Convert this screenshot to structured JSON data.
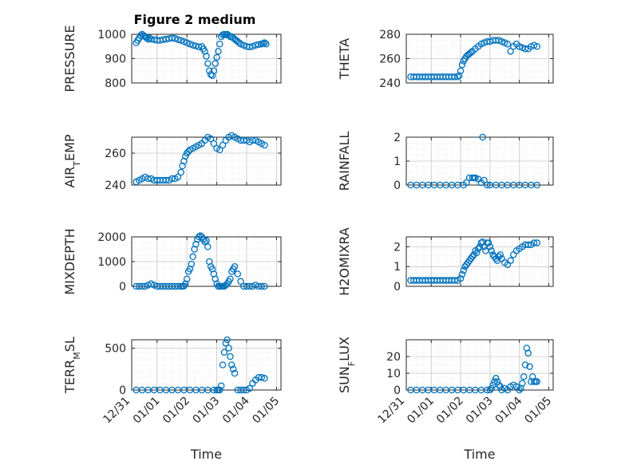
{
  "figure": {
    "title": "Figure 2 medium"
  },
  "colors": {
    "marker": "#0072BD",
    "axis": "#262626",
    "grid": "#c8c8c8"
  },
  "x_axis": {
    "xlabel": "Time",
    "xlim": [
      "12/31",
      "01/05"
    ],
    "ticks": [
      "12/31",
      "01/01",
      "01/02",
      "01/03",
      "01/04",
      "01/05"
    ]
  },
  "chart_data": [
    {
      "type": "scatter",
      "ylabel": "PRESSURE",
      "ylim": [
        800,
        1000
      ],
      "yticks": [
        800,
        900,
        1000
      ],
      "x_days": [
        0.3,
        0.35,
        0.4,
        0.45,
        0.5,
        0.55,
        0.6,
        0.65,
        0.7,
        0.75,
        0.8,
        0.9,
        1.0,
        1.1,
        1.2,
        1.3,
        1.4,
        1.5,
        1.6,
        1.7,
        1.8,
        1.9,
        2.0,
        2.1,
        2.2,
        2.3,
        2.4,
        2.5,
        2.55,
        2.6,
        2.65,
        2.7,
        2.75,
        2.8,
        2.85,
        2.9,
        2.95,
        3.0,
        3.05,
        3.1,
        3.15,
        3.2,
        3.25,
        3.3,
        3.35,
        3.4,
        3.45,
        3.5,
        3.55,
        3.6,
        3.65,
        3.7,
        3.75,
        3.8,
        3.9,
        4.0,
        4.1,
        4.2,
        4.3,
        4.4,
        4.5,
        4.55,
        4.6,
        4.65
      ],
      "y": [
        965,
        975,
        985,
        995,
        1000,
        995,
        990,
        985,
        980,
        985,
        980,
        978,
        975,
        975,
        978,
        980,
        982,
        985,
        983,
        978,
        975,
        970,
        965,
        960,
        955,
        952,
        948,
        950,
        940,
        930,
        910,
        880,
        850,
        835,
        830,
        850,
        880,
        905,
        930,
        960,
        990,
        998,
        1000,
        998,
        1000,
        995,
        990,
        990,
        985,
        980,
        975,
        970,
        965,
        960,
        955,
        950,
        948,
        950,
        955,
        958,
        960,
        962,
        965,
        960
      ]
    },
    {
      "type": "scatter",
      "ylabel": "THETA",
      "ylim": [
        240,
        280
      ],
      "yticks": [
        240,
        260,
        280
      ],
      "x_days": [
        0.3,
        0.4,
        0.5,
        0.6,
        0.7,
        0.8,
        0.9,
        1.0,
        1.1,
        1.2,
        1.3,
        1.4,
        1.5,
        1.6,
        1.7,
        1.8,
        1.9,
        1.95,
        2.0,
        2.05,
        2.1,
        2.15,
        2.2,
        2.25,
        2.3,
        2.35,
        2.4,
        2.5,
        2.6,
        2.7,
        2.8,
        2.9,
        3.0,
        3.1,
        3.2,
        3.3,
        3.4,
        3.5,
        3.6,
        3.7,
        3.8,
        3.9,
        4.0,
        4.1,
        4.2,
        4.3,
        4.4,
        4.5,
        4.6
      ],
      "y": [
        245,
        245,
        245,
        245,
        245,
        245,
        245,
        245,
        245,
        245,
        245,
        245,
        245,
        245,
        245,
        245,
        245,
        246,
        250,
        255,
        258,
        260,
        262,
        263,
        264,
        265,
        266,
        268,
        270,
        272,
        273,
        274,
        274,
        275,
        275,
        275,
        274,
        273,
        272,
        266,
        270,
        272,
        270,
        269,
        268,
        268,
        270,
        271,
        270
      ]
    },
    {
      "type": "scatter",
      "ylabel": "AIR_TEMP",
      "ylim": [
        240,
        270
      ],
      "yticks": [
        240,
        260
      ],
      "x_days": [
        0.3,
        0.4,
        0.5,
        0.6,
        0.7,
        0.8,
        0.9,
        1.0,
        1.1,
        1.2,
        1.3,
        1.4,
        1.5,
        1.6,
        1.7,
        1.8,
        1.85,
        1.9,
        1.95,
        2.0,
        2.05,
        2.1,
        2.2,
        2.3,
        2.4,
        2.5,
        2.6,
        2.7,
        2.8,
        2.9,
        3.0,
        3.1,
        3.2,
        3.3,
        3.4,
        3.5,
        3.6,
        3.7,
        3.8,
        3.9,
        4.0,
        4.1,
        4.2,
        4.3,
        4.4,
        4.5,
        4.6
      ],
      "y": [
        242,
        243,
        244,
        245,
        244,
        244,
        243,
        243,
        243,
        243,
        243,
        243,
        244,
        244,
        245,
        248,
        252,
        255,
        258,
        260,
        261,
        262,
        263,
        264,
        265,
        266,
        268,
        270,
        269,
        266,
        263,
        262,
        265,
        268,
        270,
        271,
        270,
        269,
        268,
        268,
        268,
        267,
        268,
        268,
        267,
        266,
        265
      ]
    },
    {
      "type": "scatter",
      "ylabel": "RAINFALL",
      "ylim": [
        0,
        2
      ],
      "yticks": [
        0,
        1,
        2
      ],
      "x_days": [
        0.3,
        0.5,
        0.7,
        0.9,
        1.1,
        1.3,
        1.5,
        1.7,
        1.9,
        2.1,
        2.2,
        2.3,
        2.4,
        2.5,
        2.6,
        2.7,
        2.8,
        2.9,
        3.0,
        3.2,
        3.4,
        3.6,
        3.8,
        4.0,
        4.2,
        4.4,
        4.6,
        2.45,
        2.75
      ],
      "y": [
        0,
        0,
        0,
        0,
        0,
        0,
        0,
        0,
        0,
        0,
        0.1,
        0.3,
        0.3,
        0.3,
        0.25,
        0.1,
        0.2,
        0,
        0,
        0,
        0,
        0,
        0,
        0,
        0,
        0,
        0,
        0.3,
        2.0
      ]
    },
    {
      "type": "scatter",
      "ylabel": "MIXDEPTH",
      "ylim": [
        0,
        2000
      ],
      "yticks": [
        0,
        1000,
        2000
      ],
      "x_days": [
        0.3,
        0.4,
        0.5,
        0.6,
        0.7,
        0.8,
        0.9,
        1.0,
        1.1,
        1.2,
        1.3,
        1.4,
        1.5,
        1.6,
        1.7,
        1.8,
        1.85,
        1.9,
        1.95,
        2.0,
        2.05,
        2.1,
        2.15,
        2.2,
        2.25,
        2.3,
        2.35,
        2.4,
        2.45,
        2.5,
        2.55,
        2.6,
        2.65,
        2.7,
        2.75,
        2.8,
        2.85,
        2.9,
        2.95,
        3.0,
        3.05,
        3.1,
        3.15,
        3.2,
        3.25,
        3.3,
        3.35,
        3.4,
        3.45,
        3.5,
        3.55,
        3.6,
        3.7,
        3.8,
        3.9,
        4.0,
        4.1,
        4.2,
        4.3,
        4.4,
        4.5,
        4.6
      ],
      "y": [
        0,
        0,
        0,
        0,
        50,
        100,
        50,
        0,
        0,
        0,
        0,
        0,
        0,
        0,
        0,
        0,
        0,
        10,
        100,
        300,
        600,
        700,
        900,
        1200,
        1500,
        1700,
        1900,
        2000,
        2050,
        2000,
        1900,
        1800,
        1850,
        1600,
        1000,
        800,
        700,
        500,
        300,
        100,
        0,
        0,
        0,
        0,
        0,
        50,
        100,
        200,
        300,
        600,
        700,
        800,
        500,
        200,
        0,
        0,
        0,
        0,
        50,
        0,
        0,
        0
      ]
    },
    {
      "type": "scatter",
      "ylabel": "H2OMIXRA",
      "ylim": [
        0,
        2.5
      ],
      "yticks": [
        0,
        1,
        2
      ],
      "x_days": [
        0.3,
        0.4,
        0.5,
        0.6,
        0.7,
        0.8,
        0.9,
        1.0,
        1.1,
        1.2,
        1.3,
        1.4,
        1.5,
        1.6,
        1.7,
        1.8,
        1.9,
        2.0,
        2.05,
        2.1,
        2.15,
        2.2,
        2.25,
        2.3,
        2.35,
        2.4,
        2.45,
        2.5,
        2.55,
        2.6,
        2.65,
        2.7,
        2.75,
        2.8,
        2.85,
        2.9,
        2.95,
        3.0,
        3.05,
        3.1,
        3.15,
        3.2,
        3.25,
        3.3,
        3.35,
        3.4,
        3.5,
        3.6,
        3.7,
        3.8,
        3.9,
        4.0,
        4.1,
        4.2,
        4.3,
        4.4,
        4.5,
        4.6
      ],
      "y": [
        0.3,
        0.3,
        0.3,
        0.3,
        0.3,
        0.3,
        0.3,
        0.3,
        0.3,
        0.3,
        0.3,
        0.3,
        0.3,
        0.3,
        0.3,
        0.3,
        0.3,
        0.4,
        0.6,
        0.8,
        1.0,
        1.1,
        1.2,
        1.3,
        1.4,
        1.5,
        1.6,
        1.8,
        1.7,
        1.9,
        2.0,
        2.2,
        2.25,
        2.0,
        1.8,
        2.2,
        2.2,
        2.0,
        1.8,
        1.6,
        1.5,
        1.4,
        1.3,
        1.5,
        1.6,
        1.4,
        1.2,
        1.1,
        1.3,
        1.6,
        1.8,
        1.9,
        2.0,
        2.1,
        2.1,
        2.1,
        2.2,
        2.2
      ]
    },
    {
      "type": "scatter",
      "ylabel": "TERR_MSL",
      "ylim": [
        0,
        600
      ],
      "yticks": [
        0,
        500
      ],
      "x_days": [
        0.3,
        0.5,
        0.7,
        0.9,
        1.1,
        1.3,
        1.5,
        1.7,
        1.9,
        2.1,
        2.3,
        2.5,
        2.7,
        2.9,
        3.0,
        3.05,
        3.1,
        3.15,
        3.2,
        3.25,
        3.3,
        3.35,
        3.4,
        3.45,
        3.5,
        3.55,
        3.6,
        3.7,
        3.8,
        3.9,
        4.0,
        4.1,
        4.2,
        4.3,
        4.4,
        4.5,
        4.6
      ],
      "y": [
        0,
        0,
        0,
        0,
        0,
        0,
        0,
        0,
        0,
        0,
        0,
        0,
        0,
        0,
        0,
        0,
        0,
        50,
        300,
        450,
        560,
        600,
        500,
        400,
        300,
        250,
        200,
        0,
        0,
        0,
        0,
        20,
        80,
        120,
        150,
        150,
        140
      ]
    },
    {
      "type": "scatter",
      "ylabel": "SUN_FLUX",
      "ylim": [
        0,
        30
      ],
      "yticks": [
        0,
        10,
        20
      ],
      "x_days": [
        0.3,
        0.5,
        0.7,
        0.9,
        1.1,
        1.3,
        1.5,
        1.7,
        1.9,
        2.1,
        2.3,
        2.5,
        2.7,
        2.9,
        3.0,
        3.05,
        3.1,
        3.15,
        3.2,
        3.25,
        3.3,
        3.35,
        3.4,
        3.5,
        3.6,
        3.7,
        3.8,
        3.9,
        4.0,
        4.05,
        4.1,
        4.15,
        4.2,
        4.25,
        4.3,
        4.35,
        4.4,
        4.45,
        4.5,
        4.55,
        4.6
      ],
      "y": [
        0,
        0,
        0,
        0,
        0,
        0,
        0,
        0,
        0,
        0,
        0,
        0,
        0,
        0,
        0,
        1,
        3,
        5,
        7,
        5,
        3,
        2,
        0,
        1,
        0,
        2,
        3,
        2,
        0,
        1,
        4,
        8,
        15,
        25,
        22,
        14,
        5,
        8,
        5,
        5,
        5
      ]
    }
  ]
}
